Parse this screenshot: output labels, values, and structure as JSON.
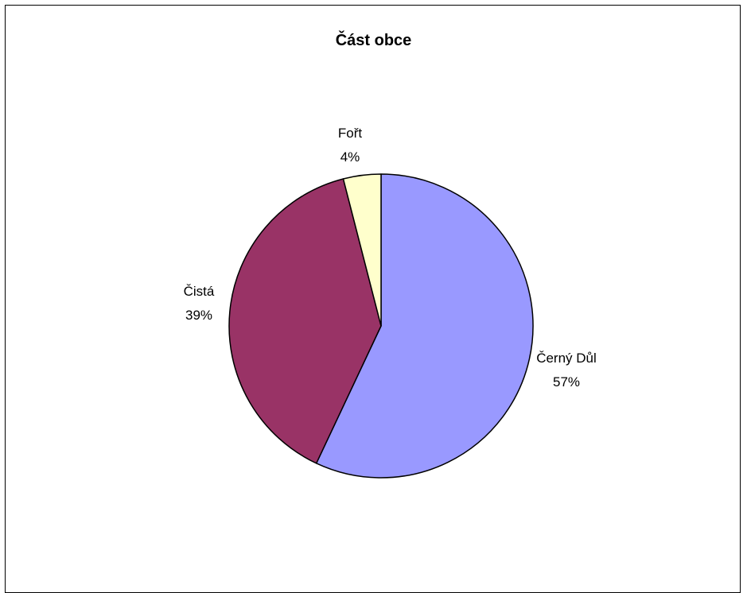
{
  "chart_data": {
    "type": "pie",
    "title": "Část obce",
    "slices": [
      {
        "label": "Černý Důl",
        "percent_label": "57%",
        "value": 57,
        "color": "#9999ff"
      },
      {
        "label": "Čistá",
        "percent_label": "39%",
        "value": 39,
        "color": "#993366"
      },
      {
        "label": "Fořt",
        "percent_label": "4%",
        "value": 4,
        "color": "#ffffcc"
      }
    ]
  }
}
